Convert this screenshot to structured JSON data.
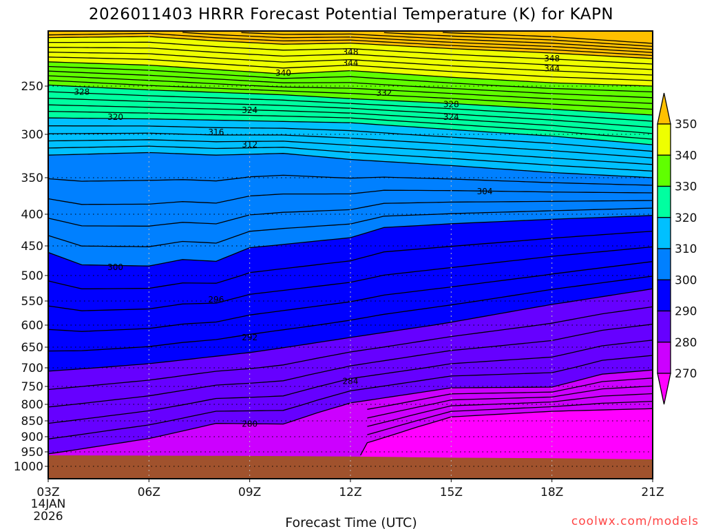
{
  "chart_data": {
    "type": "contour",
    "title": "2026011403 HRRR Forecast Potential Temperature (K) for KAPN",
    "xlabel": "Forecast Time (UTC)",
    "ylabel": "",
    "x_ticks": [
      "03Z",
      "06Z",
      "09Z",
      "12Z",
      "15Z",
      "18Z",
      "21Z"
    ],
    "x_tick_hours": [
      3,
      6,
      9,
      12,
      15,
      18,
      21
    ],
    "date_labels": [
      "14JAN",
      "2026"
    ],
    "x_range": [
      3,
      21
    ],
    "y_ticks": [
      "250",
      "300",
      "350",
      "400",
      "450",
      "500",
      "550",
      "600",
      "650",
      "700",
      "750",
      "800",
      "850",
      "900",
      "950",
      "1000"
    ],
    "y_range_hpa": [
      200,
      1050
    ],
    "grid": "dotted",
    "contour_interval": 2,
    "colorbar": {
      "position": "right",
      "levels": [
        "270",
        "280",
        "290",
        "300",
        "310",
        "320",
        "330",
        "340",
        "350"
      ],
      "colors": {
        "below_270": "#ff00ff",
        "270_280": "#cc00ff",
        "280_290": "#6600ff",
        "290_300": "#0000ff",
        "300_310": "#0080ff",
        "310_320": "#00c0ff",
        "320_330": "#00ffa0",
        "330_340": "#60ff00",
        "340_350": "#eeff00",
        "above_350": "#ffc000"
      }
    },
    "isentropes": [
      {
        "theta": 350,
        "hours": [
          3,
          6,
          8,
          10,
          12,
          15,
          18,
          21
        ],
        "pressure": [
          206,
          205,
          209,
          212,
          211,
          216,
          220,
          225
        ]
      },
      {
        "theta": 340,
        "hours": [
          3,
          6,
          10,
          12,
          15,
          18,
          21
        ],
        "pressure": [
          228,
          231,
          239,
          236,
          242,
          247,
          250
        ]
      },
      {
        "theta": 330,
        "hours": [
          3,
          6,
          10,
          12,
          15,
          18,
          21
        ],
        "pressure": [
          249,
          254,
          259,
          263,
          268,
          274,
          280
        ]
      },
      {
        "theta": 320,
        "hours": [
          3,
          6,
          9,
          12,
          15,
          18,
          21
        ],
        "pressure": [
          283,
          284,
          286,
          288,
          295,
          302,
          312
        ]
      },
      {
        "theta": 310,
        "hours": [
          3,
          6,
          8,
          10,
          12,
          15,
          18,
          21
        ],
        "pressure": [
          324,
          321,
          324,
          322,
          329,
          336,
          344,
          350
        ]
      },
      {
        "theta": 300,
        "hours": [
          3,
          4,
          6,
          7,
          8,
          9,
          12,
          13,
          15,
          18,
          21
        ],
        "pressure": [
          461,
          482,
          484,
          473,
          476,
          453,
          437,
          421,
          415,
          408,
          402
        ]
      },
      {
        "theta": 290,
        "hours": [
          3,
          6,
          9,
          12,
          15,
          18,
          21
        ],
        "pressure": [
          709,
          690,
          663,
          628,
          594,
          557,
          526
        ]
      },
      {
        "theta": 280,
        "hours": [
          3,
          6,
          8,
          10,
          11,
          12,
          15,
          18,
          19.5,
          21
        ],
        "pressure": [
          957,
          906,
          858,
          860,
          826,
          796,
          754,
          752,
          717,
          706
        ]
      },
      {
        "theta": 270,
        "hours": [
          12.3,
          12.5,
          14,
          15,
          18,
          21
        ],
        "pressure": [
          962,
          920,
          869,
          838,
          821,
          813
        ]
      }
    ],
    "surface_pressure": {
      "hours": [
        3,
        9,
        12,
        15,
        18,
        21
      ],
      "pressure": [
        962,
        964,
        966,
        970,
        972,
        976
      ]
    },
    "contour_labels": [
      {
        "text": "348",
        "hour": 12,
        "pressure": 219
      },
      {
        "text": "344",
        "hour": 12,
        "pressure": 229
      },
      {
        "text": "348",
        "hour": 18,
        "pressure": 225
      },
      {
        "text": "344",
        "hour": 18,
        "pressure": 234
      },
      {
        "text": "340",
        "hour": 10,
        "pressure": 238
      },
      {
        "text": "328",
        "hour": 4,
        "pressure": 256
      },
      {
        "text": "332",
        "hour": 13,
        "pressure": 257
      },
      {
        "text": "328",
        "hour": 15,
        "pressure": 269
      },
      {
        "text": "324",
        "hour": 15,
        "pressure": 282
      },
      {
        "text": "320",
        "hour": 5,
        "pressure": 282
      },
      {
        "text": "324",
        "hour": 9,
        "pressure": 275
      },
      {
        "text": "316",
        "hour": 8,
        "pressure": 298
      },
      {
        "text": "312",
        "hour": 9,
        "pressure": 312
      },
      {
        "text": "304",
        "hour": 16,
        "pressure": 369
      },
      {
        "text": "300",
        "hour": 5,
        "pressure": 486
      },
      {
        "text": "296",
        "hour": 8,
        "pressure": 547
      },
      {
        "text": "292",
        "hour": 9,
        "pressure": 628
      },
      {
        "text": "284",
        "hour": 12,
        "pressure": 736
      },
      {
        "text": "280",
        "hour": 9,
        "pressure": 860
      }
    ]
  },
  "watermark": "coolwx.com/models",
  "colors": {
    "ground": "#a0522d",
    "grid": "#999999"
  }
}
